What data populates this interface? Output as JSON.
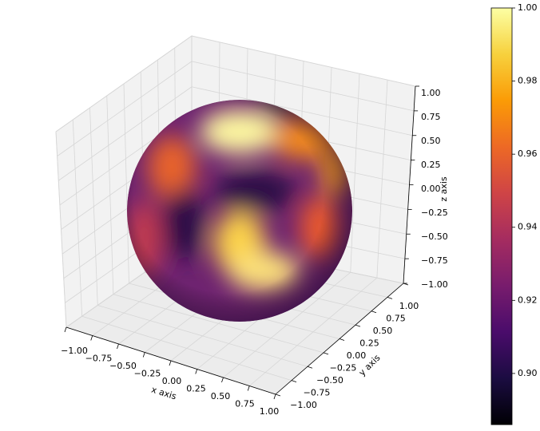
{
  "chart_data": {
    "type": "surface3d",
    "xlabel": "x axis",
    "ylabel": "y axis",
    "zlabel": "z axis",
    "xlim": [
      -1,
      1
    ],
    "ylim": [
      -1,
      1
    ],
    "zlim": [
      -1,
      1
    ],
    "xticks": [
      {
        "value": -1,
        "label": "−1.00"
      },
      {
        "value": -0.75,
        "label": "−0.75"
      },
      {
        "value": -0.5,
        "label": "−0.50"
      },
      {
        "value": -0.25,
        "label": "−0.25"
      },
      {
        "value": 0,
        "label": "0.00"
      },
      {
        "value": 0.25,
        "label": "0.25"
      },
      {
        "value": 0.5,
        "label": "0.50"
      },
      {
        "value": 0.75,
        "label": "0.75"
      },
      {
        "value": 1,
        "label": "1.00"
      }
    ],
    "yticks": [
      {
        "value": -1,
        "label": "−1.00"
      },
      {
        "value": -0.75,
        "label": "−0.75"
      },
      {
        "value": -0.5,
        "label": "−0.50"
      },
      {
        "value": -0.25,
        "label": "−0.25"
      },
      {
        "value": 0,
        "label": "0.00"
      },
      {
        "value": 0.25,
        "label": "0.25"
      },
      {
        "value": 0.5,
        "label": "0.50"
      },
      {
        "value": 0.75,
        "label": "0.75"
      },
      {
        "value": 1,
        "label": "1.00"
      }
    ],
    "zticks": [
      {
        "value": -1,
        "label": "−1.00"
      },
      {
        "value": -0.75,
        "label": "−0.75"
      },
      {
        "value": -0.5,
        "label": "−0.50"
      },
      {
        "value": -0.25,
        "label": "−0.25"
      },
      {
        "value": 0,
        "label": "0.00"
      },
      {
        "value": 0.25,
        "label": "0.25"
      },
      {
        "value": 0.5,
        "label": "0.50"
      },
      {
        "value": 0.75,
        "label": "0.75"
      },
      {
        "value": 1,
        "label": "1.00"
      }
    ],
    "colormap": "inferno",
    "clim": [
      0.886,
      1.0
    ],
    "cticks": [
      {
        "value": 0.9,
        "label": "0.90"
      },
      {
        "value": 0.92,
        "label": "0.92"
      },
      {
        "value": 0.94,
        "label": "0.94"
      },
      {
        "value": 0.96,
        "label": "0.96"
      },
      {
        "value": 0.98,
        "label": "0.98"
      },
      {
        "value": 1,
        "label": "1.00"
      }
    ],
    "grid": true
  }
}
